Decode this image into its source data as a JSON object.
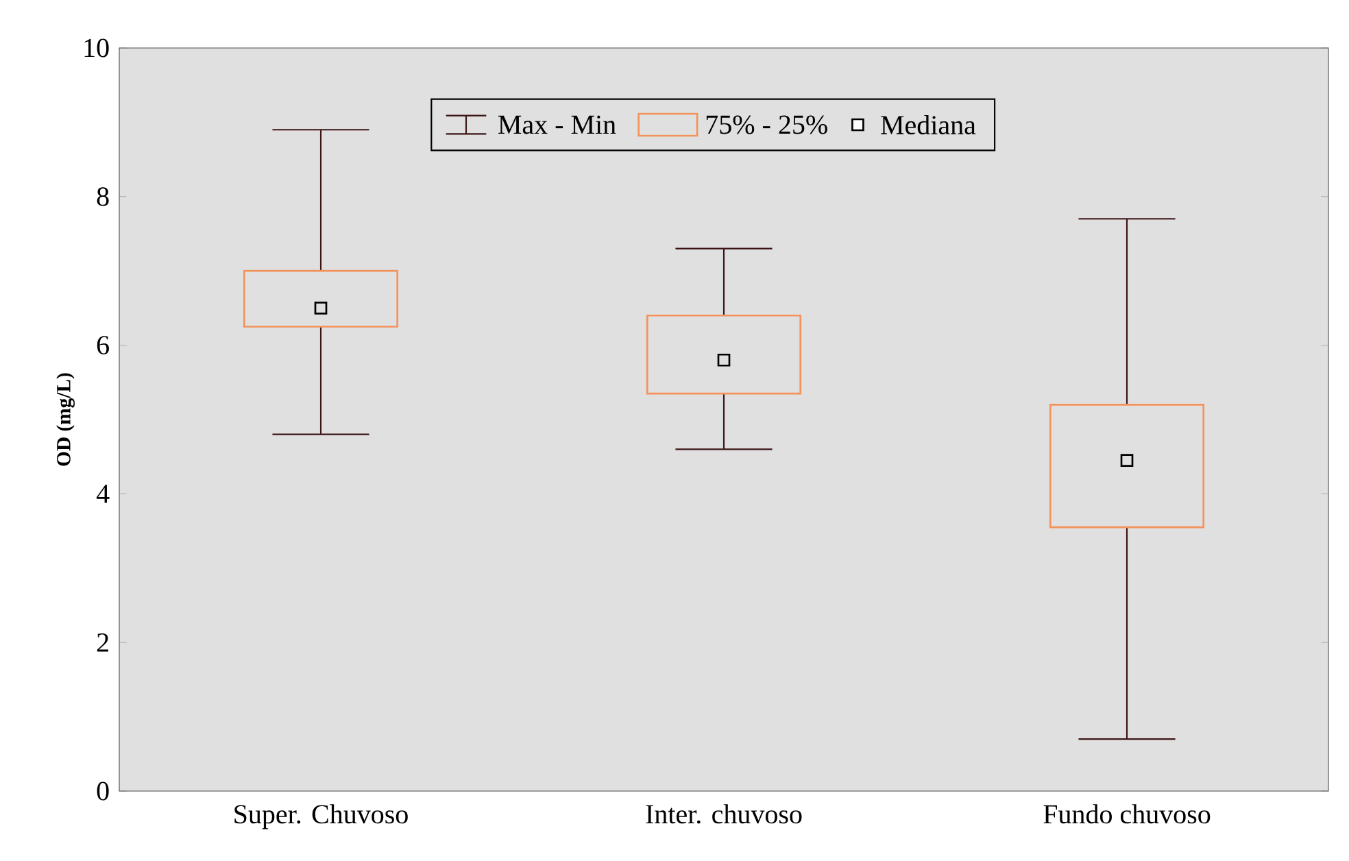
{
  "chart_data": {
    "type": "box",
    "ylabel": "OD (mg/L)",
    "categories": [
      "Super. Chuvoso",
      "Inter. chuvoso",
      "Fundo chuvoso"
    ],
    "boxes": [
      {
        "low": 4.8,
        "q1": 6.25,
        "median": 6.5,
        "q3": 7.0,
        "high": 8.9
      },
      {
        "low": 4.6,
        "q1": 5.35,
        "median": 5.8,
        "q3": 6.4,
        "high": 7.3
      },
      {
        "low": 0.7,
        "q1": 3.55,
        "median": 4.45,
        "q3": 5.2,
        "high": 7.7
      }
    ],
    "annotations": [
      "Max - Min",
      "75% - 25%",
      "Mediana"
    ],
    "ylim": [
      0,
      10
    ],
    "yticks": [
      0,
      2,
      4,
      6,
      8,
      10
    ],
    "marker": "square"
  }
}
